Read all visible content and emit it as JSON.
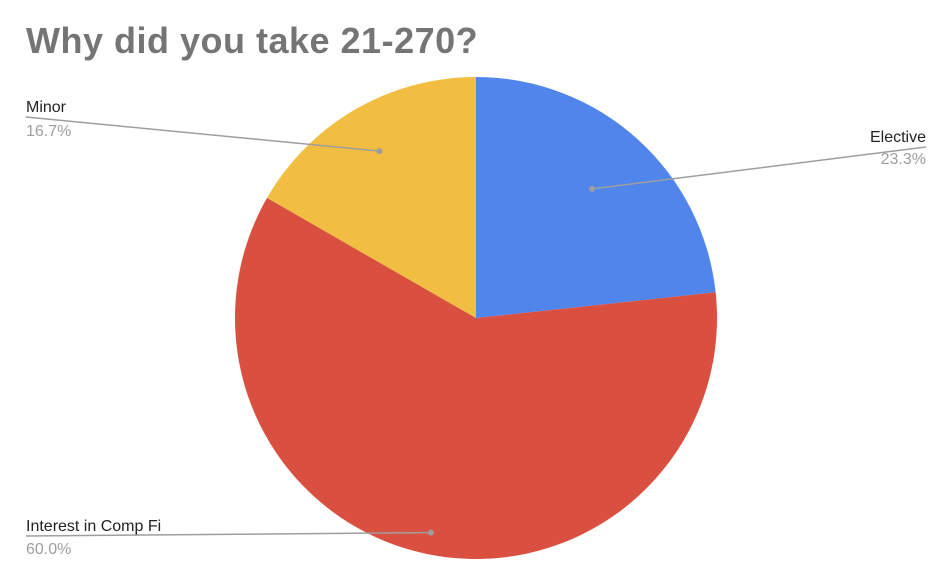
{
  "chart_data": {
    "type": "pie",
    "title": "Why did you take 21-270?",
    "slices": [
      {
        "label": "Elective",
        "value": 23.3,
        "display": "23.3%",
        "color": "#5085EC"
      },
      {
        "label": "Interest in Comp Fi",
        "value": 60.0,
        "display": "60.0%",
        "color": "#D95040"
      },
      {
        "label": "Minor",
        "value": 16.7,
        "display": "16.7%",
        "color": "#F1BE42"
      }
    ],
    "start_angle_deg": 0,
    "direction": "clockwise",
    "legend": "none",
    "labels": "outside-with-leader-lines"
  }
}
